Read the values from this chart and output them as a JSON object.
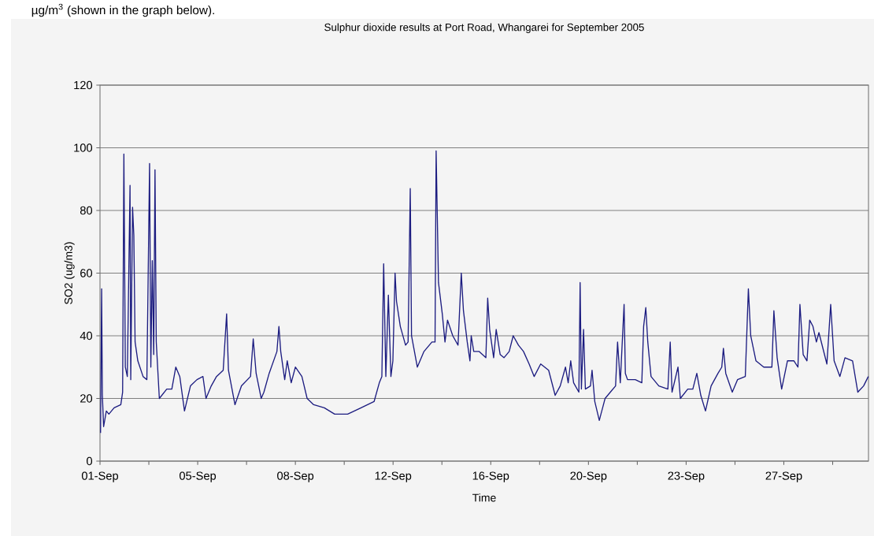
{
  "chart_data": {
    "type": "line",
    "title": "Sulphur dioxide results at Port Road, Whangarei for September 2005",
    "xlabel": "Time",
    "ylabel": "SO2 (ug/m3)",
    "annotations": [
      "µg/m$^{3}$ (shown in the graph below)."
    ],
    "xlim": [
      "2005-09-01T06:00",
      "2005-09-30T18:00"
    ],
    "ylim": [
      0,
      120
    ],
    "xticks": [
      {
        "value": "2005-09-01T06:00",
        "label": "01-Sep"
      },
      {
        "value": "2005-09-03T03:00",
        "label": null
      },
      {
        "value": "2005-09-05T00:00",
        "label": "05-Sep"
      },
      {
        "value": "2005-09-06T21:00",
        "label": null
      },
      {
        "value": "2005-09-08T18:00",
        "label": "08-Sep"
      },
      {
        "value": "2005-09-10T15:00",
        "label": null
      },
      {
        "value": "2005-09-12T12:00",
        "label": "12-Sep"
      },
      {
        "value": "2005-09-14T09:00",
        "label": null
      },
      {
        "value": "2005-09-16T06:00",
        "label": "16-Sep"
      },
      {
        "value": "2005-09-18T03:00",
        "label": null
      },
      {
        "value": "2005-09-20T00:00",
        "label": "20-Sep"
      },
      {
        "value": "2005-09-21T21:00",
        "label": null
      },
      {
        "value": "2005-09-23T18:00",
        "label": "23-Sep"
      },
      {
        "value": "2005-09-25T15:00",
        "label": null
      },
      {
        "value": "2005-09-27T12:00",
        "label": "27-Sep"
      },
      {
        "value": "2005-09-29T09:00",
        "label": null
      }
    ],
    "yticks": [
      0,
      20,
      40,
      60,
      80,
      100,
      120
    ],
    "grid": "y",
    "marker": "none",
    "line_style": "solid",
    "series": [
      {
        "color": "#1c1c80",
        "x": [
          "2005-09-01T06:30",
          "2005-09-01T07:30",
          "2005-09-01T08:10",
          "2005-09-01T09:20",
          "2005-09-01T11:50",
          "2005-09-01T14:10",
          "2005-09-01T19:00",
          "2005-09-02T01:10",
          "2005-09-02T02:50",
          "2005-09-02T04:00",
          "2005-09-02T05:20",
          "2005-09-02T07:10",
          "2005-09-02T09:40",
          "2005-09-02T10:20",
          "2005-09-02T12:00",
          "2005-09-02T13:10",
          "2005-09-02T14:20",
          "2005-09-02T16:50",
          "2005-09-02T21:40",
          "2005-09-03T01:10",
          "2005-09-03T03:40",
          "2005-09-03T04:50",
          "2005-09-03T06:10",
          "2005-09-03T07:30",
          "2005-09-03T08:40",
          "2005-09-03T09:50",
          "2005-09-03T12:40",
          "2005-09-03T19:30",
          "2005-09-04T00:10",
          "2005-09-04T03:50",
          "2005-09-04T07:30",
          "2005-09-04T11:50",
          "2005-09-04T17:20",
          "2005-09-04T23:20",
          "2005-09-05T04:50",
          "2005-09-05T07:40",
          "2005-09-05T12:30",
          "2005-09-05T17:20",
          "2005-09-05T23:30",
          "2005-09-06T02:40",
          "2005-09-06T04:20",
          "2005-09-06T10:20",
          "2005-09-06T16:20",
          "2005-09-07T00:40",
          "2005-09-07T03:10",
          "2005-09-07T05:50",
          "2005-09-07T10:30",
          "2005-09-07T13:00",
          "2005-09-07T17:50",
          "2005-09-08T01:00",
          "2005-09-08T02:50",
          "2005-09-08T04:30",
          "2005-09-08T08:10",
          "2005-09-08T10:30",
          "2005-09-08T14:10",
          "2005-09-08T18:00",
          "2005-09-09T00:00",
          "2005-09-09T04:50",
          "2005-09-09T10:50",
          "2005-09-09T20:40",
          "2005-09-10T06:10",
          "2005-09-10T18:10",
          "2005-09-11T06:30",
          "2005-09-11T18:30",
          "2005-09-11T23:20",
          "2005-09-12T01:40",
          "2005-09-12T03:20",
          "2005-09-12T05:20",
          "2005-09-12T07:40",
          "2005-09-12T10:00",
          "2005-09-12T11:50",
          "2005-09-12T13:50",
          "2005-09-12T15:10",
          "2005-09-12T18:40",
          "2005-09-12T23:30",
          "2005-09-13T01:50",
          "2005-09-13T03:50",
          "2005-09-13T05:00",
          "2005-09-13T10:20",
          "2005-09-13T16:30",
          "2005-09-13T23:50",
          "2005-09-14T02:40",
          "2005-09-14T03:40",
          "2005-09-14T05:50",
          "2005-09-14T09:20",
          "2005-09-14T11:50",
          "2005-09-14T14:10",
          "2005-09-14T19:00",
          "2005-09-14T23:50",
          "2005-09-15T02:50",
          "2005-09-15T04:50",
          "2005-09-15T08:20",
          "2005-09-15T10:50",
          "2005-09-15T12:00",
          "2005-09-15T14:20",
          "2005-09-15T19:10",
          "2005-09-16T01:30",
          "2005-09-16T03:10",
          "2005-09-16T05:00",
          "2005-09-16T08:40",
          "2005-09-16T11:00",
          "2005-09-16T14:40",
          "2005-09-16T18:10",
          "2005-09-16T23:00",
          "2005-09-17T02:40",
          "2005-09-17T07:30",
          "2005-09-17T12:10",
          "2005-09-17T17:20",
          "2005-09-17T22:00",
          "2005-09-18T04:00",
          "2005-09-18T11:20",
          "2005-09-18T17:20",
          "2005-09-18T22:00",
          "2005-09-19T02:50",
          "2005-09-19T05:20",
          "2005-09-19T07:40",
          "2005-09-19T10:20",
          "2005-09-19T15:10",
          "2005-09-19T16:20",
          "2005-09-19T17:30",
          "2005-09-19T19:30",
          "2005-09-19T21:10",
          "2005-09-20T01:50",
          "2005-09-20T03:20",
          "2005-09-20T05:50",
          "2005-09-20T10:00",
          "2005-09-20T15:20",
          "2005-09-20T20:10",
          "2005-09-21T01:00",
          "2005-09-21T02:50",
          "2005-09-21T05:20",
          "2005-09-21T08:50",
          "2005-09-21T10:00",
          "2005-09-21T12:00",
          "2005-09-21T19:10",
          "2005-09-22T01:10",
          "2005-09-22T02:50",
          "2005-09-22T04:50",
          "2005-09-22T06:40",
          "2005-09-22T09:40",
          "2005-09-22T16:50",
          "2005-09-23T01:10",
          "2005-09-23T03:20",
          "2005-09-23T05:00",
          "2005-09-23T10:30",
          "2005-09-23T12:40",
          "2005-09-23T19:30",
          "2005-09-24T00:10",
          "2005-09-24T03:50",
          "2005-09-24T07:30",
          "2005-09-24T11:50",
          "2005-09-24T17:00",
          "2005-09-24T23:20",
          "2005-09-25T02:50",
          "2005-09-25T04:20",
          "2005-09-25T06:30",
          "2005-09-25T12:30",
          "2005-09-25T17:20",
          "2005-09-26T00:30",
          "2005-09-26T03:20",
          "2005-09-26T05:30",
          "2005-09-26T10:20",
          "2005-09-26T17:30",
          "2005-09-27T01:00",
          "2005-09-27T02:50",
          "2005-09-27T05:50",
          "2005-09-27T10:00",
          "2005-09-27T15:20",
          "2005-09-27T21:20",
          "2005-09-28T01:00",
          "2005-09-28T02:50",
          "2005-09-28T05:50",
          "2005-09-28T09:20",
          "2005-09-28T11:50",
          "2005-09-28T14:50",
          "2005-09-28T18:00",
          "2005-09-28T20:20",
          "2005-09-29T00:00",
          "2005-09-29T03:40",
          "2005-09-29T07:10",
          "2005-09-29T10:20",
          "2005-09-29T15:40",
          "2005-09-29T20:20",
          "2005-09-30T03:20",
          "2005-09-30T08:10",
          "2005-09-30T13:30",
          "2005-09-30T17:50"
        ],
        "values": [
          9,
          55,
          21,
          11,
          16,
          15,
          17,
          18,
          22,
          98,
          30,
          27,
          88,
          26,
          81,
          72,
          38,
          32,
          27,
          26,
          95,
          30,
          64,
          34,
          93,
          38,
          20,
          23,
          23,
          30,
          27,
          16,
          24,
          26,
          27,
          20,
          24,
          27,
          29,
          47,
          29,
          18,
          24,
          27,
          39,
          28,
          20,
          22,
          28,
          35,
          43,
          35,
          26,
          32,
          25,
          30,
          27,
          20,
          18,
          17,
          15,
          15,
          17,
          19,
          25,
          27,
          63,
          27,
          53,
          27,
          32,
          60,
          51,
          43,
          37,
          38,
          87,
          40,
          30,
          35,
          38,
          38,
          99,
          57,
          47,
          38,
          45,
          40,
          37,
          60,
          48,
          38,
          32,
          40,
          35,
          35,
          33,
          52,
          42,
          33,
          42,
          34,
          33,
          35,
          40,
          37,
          35,
          31,
          27,
          31,
          29,
          21,
          24,
          30,
          25,
          32,
          25,
          22,
          57,
          23,
          42,
          23,
          24,
          29,
          19,
          13,
          20,
          22,
          24,
          38,
          25,
          50,
          28,
          26,
          26,
          25,
          43,
          49,
          38,
          27,
          24,
          23,
          38,
          22,
          30,
          20,
          23,
          23,
          28,
          21,
          16,
          24,
          28,
          30,
          36,
          28,
          22,
          26,
          27,
          55,
          40,
          32,
          30,
          30,
          48,
          33,
          23,
          32,
          32,
          30,
          50,
          34,
          32,
          45,
          43,
          38,
          41,
          36,
          31,
          50,
          32,
          27,
          33,
          32,
          22,
          24,
          27
        ]
      }
    ]
  }
}
